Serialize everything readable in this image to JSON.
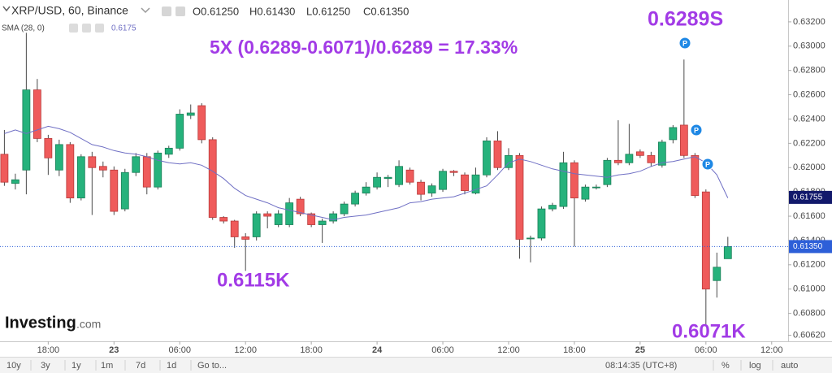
{
  "chart_data": {
    "type": "candlestick",
    "symbol": "XRP/USD, 60, Binance",
    "ohlc_header": [
      "O0.61250",
      "H0.61430",
      "L0.61250",
      "C0.61350"
    ],
    "indicator": {
      "name": "SMA (28, 0)",
      "value_label": "0.6175",
      "color": "#6f6fc4"
    },
    "annotations": {
      "formula": "5X (0.6289-0.6071)/0.6289 = 17.33%",
      "high": "0.6289S",
      "low1": "0.6115K",
      "low2": "0.6071K",
      "color": "#a23be6"
    },
    "pin_labels": [
      "P",
      "P",
      "P"
    ],
    "up_color": "#26b27c",
    "down_color": "#ef5b5b",
    "up_border": "#1b7f58",
    "down_border": "#b83a3a",
    "wick_color": "#4a4a4a",
    "x": [
      -4,
      -3,
      -2,
      -1,
      0,
      1,
      2,
      3,
      4,
      5,
      6,
      7,
      8,
      9,
      10,
      11,
      12,
      13,
      14,
      15,
      16,
      17,
      18,
      19,
      20,
      21,
      22,
      23,
      24,
      25,
      26,
      27,
      28,
      29,
      30,
      31,
      32,
      33,
      34,
      35,
      36,
      37,
      38,
      39,
      40,
      41,
      42,
      43,
      44,
      45,
      46,
      47,
      48,
      49,
      50,
      51,
      52,
      53,
      54,
      55,
      56,
      57,
      58,
      59,
      60,
      61,
      62
    ],
    "open": [
      0.6211,
      0.6187,
      0.6198,
      0.6264,
      0.6224,
      0.6198,
      0.6219,
      0.6175,
      0.6209,
      0.6201,
      0.6198,
      0.6166,
      0.6196,
      0.6209,
      0.6184,
      0.6211,
      0.6216,
      0.6243,
      0.6251,
      0.6223,
      0.6159,
      0.6156,
      0.6143,
      0.6143,
      0.6162,
      0.6153,
      0.6153,
      0.6174,
      0.6162,
      0.6153,
      0.6156,
      0.6162,
      0.617,
      0.6179,
      0.6184,
      0.6191,
      0.6186,
      0.6198,
      0.6188,
      0.6179,
      0.6182,
      0.6197,
      0.6194,
      0.6179,
      0.6194,
      0.6222,
      0.62,
      0.621,
      0.6142,
      0.6142,
      0.6166,
      0.6168,
      0.6204,
      0.6174,
      0.6184,
      0.6186,
      0.6206,
      0.6204,
      0.6213,
      0.621,
      0.6202,
      0.6223,
      0.6235,
      0.621,
      0.618,
      0.6107,
      0.6125
    ],
    "high": [
      0.6231,
      0.6195,
      0.6311,
      0.6273,
      0.6227,
      0.6223,
      0.6221,
      0.6211,
      0.6213,
      0.6205,
      0.6201,
      0.6199,
      0.6212,
      0.6212,
      0.6214,
      0.6218,
      0.6248,
      0.6252,
      0.6253,
      0.6225,
      0.616,
      0.6157,
      0.6146,
      0.6164,
      0.6164,
      0.6165,
      0.6175,
      0.6176,
      0.6163,
      0.6158,
      0.6164,
      0.6172,
      0.6181,
      0.6188,
      0.6196,
      0.6194,
      0.6206,
      0.62,
      0.619,
      0.6187,
      0.6199,
      0.6198,
      0.6196,
      0.62,
      0.6225,
      0.623,
      0.6216,
      0.6212,
      0.6144,
      0.6168,
      0.6171,
      0.6213,
      0.6206,
      0.6186,
      0.6186,
      0.6208,
      0.6239,
      0.6236,
      0.6215,
      0.6213,
      0.6223,
      0.6235,
      0.6289,
      0.6212,
      0.6182,
      0.613,
      0.6143
    ],
    "low": [
      0.6185,
      0.6182,
      0.6178,
      0.6221,
      0.6194,
      0.6193,
      0.6171,
      0.6173,
      0.6161,
      0.6192,
      0.6161,
      0.6164,
      0.6193,
      0.6178,
      0.6182,
      0.6208,
      0.6214,
      0.624,
      0.622,
      0.6157,
      0.6154,
      0.6134,
      0.6115,
      0.614,
      0.615,
      0.6151,
      0.6151,
      0.616,
      0.6151,
      0.6138,
      0.6154,
      0.616,
      0.6168,
      0.6177,
      0.6182,
      0.6184,
      0.6184,
      0.6186,
      0.6173,
      0.6176,
      0.618,
      0.6193,
      0.6178,
      0.6178,
      0.6192,
      0.6198,
      0.6198,
      0.6125,
      0.6122,
      0.614,
      0.6164,
      0.6166,
      0.6135,
      0.6172,
      0.6182,
      0.6184,
      0.6202,
      0.6202,
      0.6208,
      0.6201,
      0.62,
      0.622,
      0.6208,
      0.6175,
      0.6071,
      0.6093,
      0.6125
    ],
    "close": [
      0.6188,
      0.619,
      0.6264,
      0.6224,
      0.6208,
      0.6219,
      0.6175,
      0.6209,
      0.62,
      0.6198,
      0.6164,
      0.6196,
      0.6209,
      0.6184,
      0.6212,
      0.6216,
      0.6244,
      0.6245,
      0.6223,
      0.6159,
      0.6156,
      0.6143,
      0.6141,
      0.6162,
      0.616,
      0.6162,
      0.6171,
      0.6162,
      0.6153,
      0.6156,
      0.6162,
      0.617,
      0.6179,
      0.6184,
      0.6192,
      0.6192,
      0.6201,
      0.6188,
      0.6178,
      0.6185,
      0.6197,
      0.6196,
      0.6181,
      0.6194,
      0.6222,
      0.62,
      0.621,
      0.6141,
      0.6142,
      0.6166,
      0.6169,
      0.6204,
      0.6175,
      0.6184,
      0.6184,
      0.6206,
      0.6204,
      0.6211,
      0.621,
      0.6204,
      0.6221,
      0.6233,
      0.621,
      0.6177,
      0.61,
      0.6118,
      0.6135
    ],
    "sma": [
      0.6228,
      0.6231,
      0.6228,
      0.6231,
      0.6234,
      0.6232,
      0.6229,
      0.6224,
      0.6219,
      0.6217,
      0.6214,
      0.6212,
      0.6211,
      0.6209,
      0.6206,
      0.6204,
      0.6203,
      0.6204,
      0.6202,
      0.6197,
      0.6191,
      0.6183,
      0.6177,
      0.6174,
      0.6171,
      0.6167,
      0.6165,
      0.6163,
      0.6161,
      0.6159,
      0.6157,
      0.6159,
      0.616,
      0.6161,
      0.6163,
      0.6165,
      0.6167,
      0.6171,
      0.6172,
      0.6174,
      0.6175,
      0.6176,
      0.6179,
      0.6182,
      0.6185,
      0.6194,
      0.6204,
      0.6207,
      0.6205,
      0.6202,
      0.6199,
      0.6197,
      0.6195,
      0.6194,
      0.6193,
      0.6192,
      0.6194,
      0.6195,
      0.6197,
      0.6201,
      0.6204,
      0.6205,
      0.6207,
      0.6209,
      0.6204,
      0.6194,
      0.6175
    ],
    "sma_price": 0.61755,
    "last_price": {
      "value": 0.6135,
      "label": "0.61350"
    },
    "last_price_color": "#2d5fd8",
    "sma_badge_color": "#12196b",
    "xlim": [
      -4.4,
      67.5
    ],
    "ylim": [
      0.6057,
      0.6338
    ],
    "xticks": [
      {
        "value": 0,
        "label": "18:00"
      },
      {
        "value": 6,
        "label": "23"
      },
      {
        "value": 12,
        "label": "06:00"
      },
      {
        "value": 18,
        "label": "12:00"
      },
      {
        "value": 24,
        "label": "18:00"
      },
      {
        "value": 30,
        "label": "24"
      },
      {
        "value": 36,
        "label": "06:00"
      },
      {
        "value": 42,
        "label": "12:00"
      },
      {
        "value": 48,
        "label": "18:00"
      },
      {
        "value": 54,
        "label": "25"
      },
      {
        "value": 60,
        "label": "06:00"
      },
      {
        "value": 66,
        "label": "12:00"
      }
    ],
    "yticks": [
      {
        "value": 0.632,
        "label": "0.63200"
      },
      {
        "value": 0.63,
        "label": "0.63000"
      },
      {
        "value": 0.628,
        "label": "0.62800"
      },
      {
        "value": 0.626,
        "label": "0.62600"
      },
      {
        "value": 0.624,
        "label": "0.62400"
      },
      {
        "value": 0.622,
        "label": "0.62200"
      },
      {
        "value": 0.62,
        "label": "0.62000"
      },
      {
        "value": 0.618,
        "label": "0.61800"
      },
      {
        "value": 0.616,
        "label": "0.61600"
      },
      {
        "value": 0.614,
        "label": "0.61400"
      },
      {
        "value": 0.612,
        "label": "0.61200"
      },
      {
        "value": 0.61,
        "label": "0.61000"
      },
      {
        "value": 0.608,
        "label": "0.60800"
      },
      {
        "value": 0.6062,
        "label": "0.60620"
      }
    ]
  },
  "ui": {
    "ranges": [
      "10y",
      "3y",
      "1y",
      "1m",
      "7d",
      "1d"
    ],
    "goto": "Go to...",
    "clock": "08:14:35 (UTC+8)",
    "scale_options": [
      "%",
      "log",
      "auto"
    ],
    "logo": {
      "brand": "Investing",
      "suffix": ".com"
    }
  }
}
